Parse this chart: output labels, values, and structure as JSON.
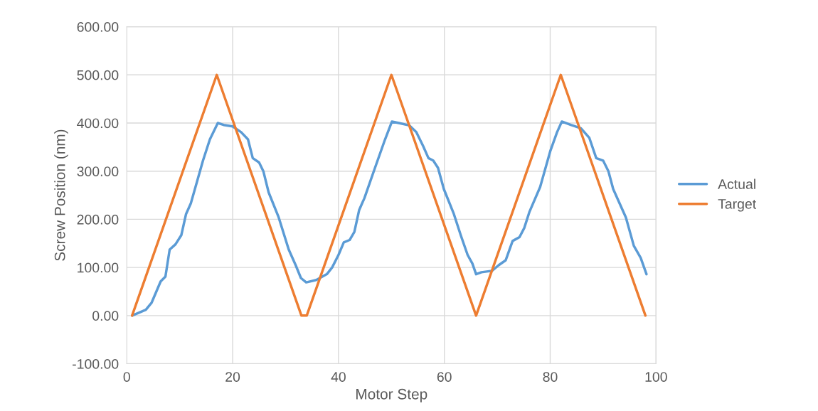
{
  "chart_data": {
    "type": "line",
    "xlabel": "Motor Step",
    "ylabel": "Screw Position (nm)",
    "xlim": [
      0,
      100
    ],
    "xticks": [
      0,
      20,
      40,
      60,
      80,
      100
    ],
    "ylim": [
      -100,
      600
    ],
    "yticks": [
      {
        "value": -100,
        "label": "-100.00"
      },
      {
        "value": 0,
        "label": "0.00"
      },
      {
        "value": 100,
        "label": "100.00"
      },
      {
        "value": 200,
        "label": "200.00"
      },
      {
        "value": 300,
        "label": "300.00"
      },
      {
        "value": 400,
        "label": "400.00"
      },
      {
        "value": 500,
        "label": "500.00"
      },
      {
        "value": 600,
        "label": "600.00"
      }
    ],
    "grid": true,
    "legend": "right",
    "marker": "none",
    "line_style": "solid",
    "series": [
      {
        "name": "Actual",
        "color": "#5b9bd5",
        "x": [
          1,
          3.6,
          4.7,
          6.4,
          7.3,
          8.1,
          9.2,
          10.3,
          11.2,
          12.1,
          14.4,
          15.7,
          17.2,
          18.3,
          20,
          21.6,
          22.9,
          23.8,
          25,
          25.8,
          26.8,
          28.7,
          30.6,
          31.9,
          32.9,
          33.9,
          35.8,
          37.8,
          38.8,
          40,
          41,
          42.1,
          43,
          43.9,
          44.9,
          46.9,
          48.8,
          50.1,
          51.4,
          53.4,
          54.7,
          56,
          57,
          57.9,
          58.8,
          59.9,
          61.8,
          63.1,
          64.4,
          65.3,
          66,
          67,
          69,
          70.3,
          71.6,
          72.9,
          74.2,
          75.1,
          76.1,
          78.1,
          80,
          81.3,
          82.2,
          83.9,
          85.8,
          87.4,
          88.7,
          90,
          91,
          91.9,
          94.3,
          95.8,
          97.1,
          98.2
        ],
        "values": [
          0,
          12,
          27,
          71,
          81,
          137,
          148,
          167,
          211,
          233,
          322,
          366,
          400,
          396,
          393,
          381,
          366,
          327,
          318,
          300,
          256,
          204,
          137,
          105,
          78,
          69,
          74,
          86,
          100,
          126,
          152,
          157,
          174,
          219,
          244,
          307,
          366,
          403,
          400,
          395,
          381,
          352,
          327,
          322,
          307,
          263,
          211,
          167,
          126,
          108,
          86,
          90,
          93,
          105,
          115,
          155,
          163,
          182,
          216,
          267,
          341,
          381,
          403,
          396,
          389,
          369,
          327,
          322,
          300,
          263,
          204,
          145,
          120,
          86
        ]
      },
      {
        "name": "Target",
        "color": "#ed7d31",
        "x": [
          1,
          17,
          33,
          34,
          50,
          66,
          82,
          98
        ],
        "values": [
          0,
          500,
          0,
          0,
          500,
          0,
          500,
          0
        ]
      }
    ]
  }
}
